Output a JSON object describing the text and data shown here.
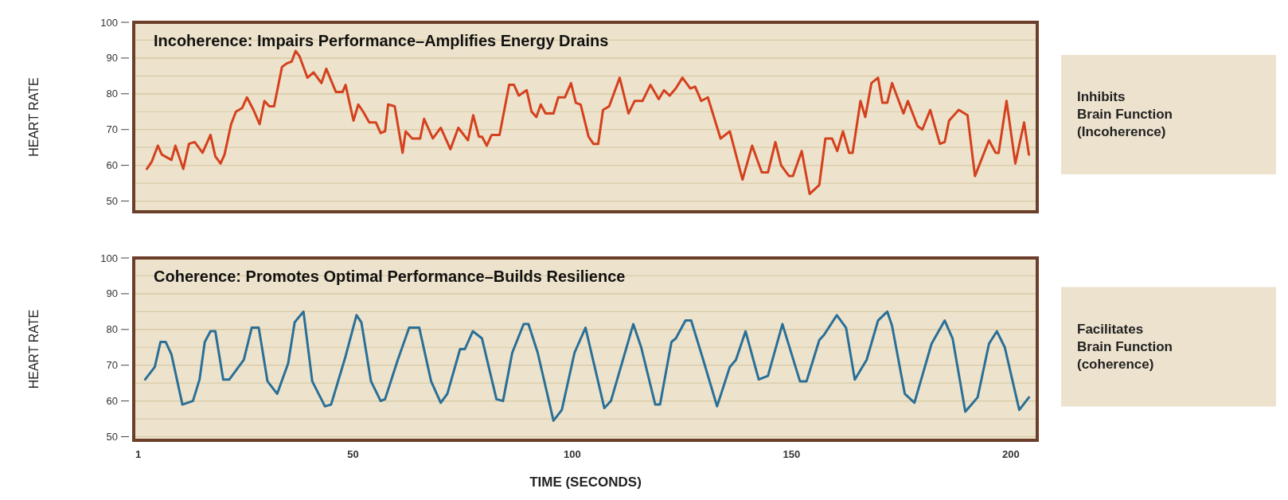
{
  "chart_data": [
    {
      "type": "line",
      "title": "Incoherence: Impairs Performance–Amplifies Energy Drains",
      "ylabel": "HEART RATE",
      "xlim": [
        0,
        206
      ],
      "ylim": [
        47,
        100
      ],
      "yticks": [
        50,
        60,
        70,
        80,
        90,
        100
      ],
      "tick_labels": "y",
      "grid": "y",
      "line_style": "solid",
      "annotations": [
        "Inhibits\nBrain Function\n(Incoherence)"
      ],
      "series": [
        {
          "color": "#d4411e",
          "x": [
            3,
            4.1,
            5.5,
            6.4,
            8.6,
            9.5,
            11.3,
            12.6,
            13.9,
            15.7,
            17.5,
            18.6,
            19.8,
            20.7,
            22.2,
            23.3,
            24.7,
            25.8,
            27.3,
            28.7,
            29.8,
            30.9,
            32,
            33.8,
            34.9,
            36,
            36.9,
            37.8,
            39.6,
            41,
            42.8,
            43.9,
            46.1,
            47.6,
            48.3,
            50.1,
            51.2,
            52.3,
            53.7,
            55.2,
            56.3,
            57.3,
            58,
            59.5,
            61.3,
            62,
            63.5,
            65.3,
            66.2,
            68.2,
            70,
            72.2,
            74,
            76.2,
            77.4,
            78.7,
            79.4,
            80.5,
            81.6,
            83.4,
            85.6,
            86.7,
            87.8,
            89.6,
            90.7,
            91.8,
            92.8,
            93.9,
            95.7,
            96.8,
            98.3,
            99.7,
            100.8,
            101.9,
            103,
            103.7,
            104.8,
            105.9,
            107,
            108.4,
            110.8,
            112.8,
            114.2,
            116,
            117.8,
            119.7,
            120.9,
            122.2,
            123.6,
            125.1,
            126.9,
            128,
            129.4,
            130.9,
            133.8,
            135.9,
            138.8,
            141,
            143.2,
            144.6,
            146.3,
            147.6,
            149.4,
            150.3,
            152.3,
            154.1,
            156.3,
            157.7,
            159.2,
            160.4,
            161.7,
            163.1,
            163.9,
            165.7,
            166.8,
            168.2,
            169.7,
            170.7,
            171.8,
            172.9,
            175.5,
            176.5,
            178.7,
            179.8,
            181.6,
            183.8,
            184.9,
            185.9,
            188.1,
            190.1,
            191.8,
            195,
            196.5,
            197.2,
            199,
            201,
            203,
            204.1
          ],
          "values": [
            59,
            61,
            65.5,
            63,
            61.5,
            65.5,
            59,
            66,
            66.5,
            63.5,
            68.5,
            62.5,
            60.5,
            63,
            71.5,
            75,
            76,
            79,
            75.5,
            71.5,
            78,
            76.5,
            76.5,
            87.5,
            88.5,
            89,
            92,
            90.5,
            84.5,
            86,
            83,
            87,
            80.5,
            80.5,
            82.5,
            72.5,
            77,
            75,
            72,
            72,
            69,
            69.5,
            77,
            76.5,
            63.5,
            69.5,
            67.5,
            67.5,
            73,
            67.5,
            70.5,
            64.5,
            70.5,
            67,
            74,
            68,
            68,
            65.5,
            68.5,
            68.5,
            82.5,
            82.5,
            79.5,
            81,
            75,
            73.5,
            77,
            74.5,
            74.5,
            79,
            79,
            83,
            77.5,
            77,
            71.5,
            68,
            66,
            66,
            75.5,
            76.5,
            84.5,
            74.5,
            78,
            78,
            82.5,
            78.5,
            81,
            79.5,
            81.5,
            84.5,
            81.5,
            82,
            78,
            79,
            67.5,
            69.5,
            56,
            65.5,
            58,
            58,
            66.5,
            60,
            57,
            57,
            64,
            52,
            54.5,
            67.5,
            67.5,
            64,
            69.5,
            63.5,
            63.5,
            78,
            73.5,
            83,
            84.5,
            77.5,
            77.5,
            83,
            74.5,
            78,
            71,
            70,
            75.5,
            66,
            66.5,
            72.5,
            75.5,
            74,
            57,
            67,
            63.5,
            63.5,
            78,
            60.5,
            72,
            63
          ]
        }
      ]
    },
    {
      "type": "line",
      "title": "Coherence: Promotes Optimal Performance–Builds Resilience",
      "ylabel": "HEART RATE",
      "xlabel": "TIME (SECONDS)",
      "xlim": [
        0,
        206
      ],
      "ylim": [
        49,
        100
      ],
      "yticks": [
        50,
        60,
        70,
        80,
        90,
        100
      ],
      "xticks": [
        1,
        50,
        100,
        150,
        200
      ],
      "grid": "y",
      "line_style": "solid",
      "annotations": [
        "Facilitates\nBrain Function\n(coherence)"
      ],
      "series": [
        {
          "color": "#2a6f97",
          "x": [
            2.6,
            4.8,
            6.1,
            7.3,
            8.6,
            11.1,
            13.5,
            15,
            16.2,
            17.5,
            18.6,
            20.4,
            21.8,
            25.1,
            26.9,
            28.5,
            30.5,
            32.7,
            35.2,
            36.7,
            38.7,
            40.7,
            43.6,
            45,
            48.3,
            50.8,
            51.9,
            54.1,
            56.3,
            57.3,
            60.2,
            62.8,
            65.1,
            67.8,
            70,
            71.5,
            74.4,
            75.5,
            77.3,
            79.4,
            82.7,
            84.2,
            86.3,
            88.9,
            90,
            92.1,
            95.7,
            97.6,
            100.5,
            103,
            107.3,
            108.8,
            113.9,
            115.7,
            118.9,
            120,
            122.6,
            123.6,
            125.8,
            127.1,
            129.6,
            133,
            135.9,
            137.3,
            139.5,
            142.5,
            144.6,
            147.9,
            151.9,
            153.4,
            156.3,
            157.4,
            160.3,
            162.4,
            164.4,
            167.1,
            169.7,
            171.8,
            172.9,
            175.8,
            178,
            181.9,
            184.9,
            186.7,
            189.6,
            192.4,
            195,
            196.8,
            198.6,
            201.9,
            204.1
          ],
          "values": [
            66,
            69.5,
            76.5,
            76.5,
            73,
            59,
            60,
            66,
            76.5,
            79.5,
            79.5,
            66,
            66,
            71.5,
            80.5,
            80.5,
            65.5,
            62,
            70.5,
            82,
            85,
            65.5,
            58.5,
            59,
            72.5,
            84,
            82,
            65.5,
            60,
            60.5,
            71.5,
            80.5,
            80.5,
            65.5,
            59.5,
            62,
            74.5,
            74.5,
            79.5,
            77.5,
            60.5,
            60,
            73.5,
            81.5,
            81.5,
            73.5,
            54.5,
            57.5,
            73.5,
            80.5,
            58,
            60,
            81.5,
            75,
            59,
            59,
            76.5,
            77.5,
            82.5,
            82.5,
            72.5,
            58.5,
            69.5,
            71.5,
            79.5,
            66,
            67,
            81.5,
            65.5,
            65.5,
            77,
            78.5,
            84,
            80.5,
            66,
            71.5,
            82.5,
            85,
            81,
            62,
            59.5,
            76,
            82.5,
            77.5,
            57,
            61,
            76,
            79.5,
            75,
            57.5,
            61
          ]
        }
      ]
    }
  ]
}
